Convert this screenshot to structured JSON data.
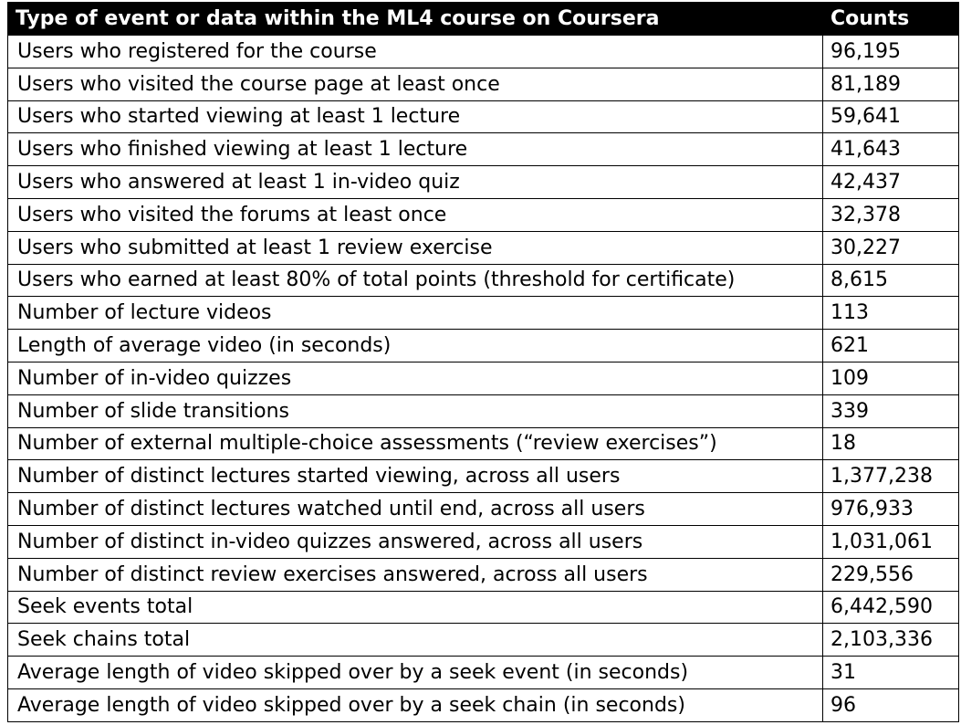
{
  "table": {
    "headers": {
      "event": "Type of event or data within the ML4 course on Coursera",
      "counts": "Counts"
    },
    "rows": [
      {
        "event": "Users who registered for the course",
        "count": "96,195"
      },
      {
        "event": "Users who visited the course page at least once",
        "count": "81,189"
      },
      {
        "event": "Users who started viewing at least 1 lecture",
        "count": "59,641"
      },
      {
        "event": "Users who finished viewing at least 1 lecture",
        "count": "41,643"
      },
      {
        "event": "Users who answered at least 1 in-video quiz",
        "count": "42,437"
      },
      {
        "event": "Users who visited the forums at least once",
        "count": "32,378"
      },
      {
        "event": "Users who submitted at least 1 review exercise",
        "count": "30,227"
      },
      {
        "event": "Users who earned at least 80% of total points (threshold for certificate)",
        "count": "8,615"
      },
      {
        "event": "Number of lecture videos",
        "count": "113"
      },
      {
        "event": "Length of average video (in seconds)",
        "count": "621"
      },
      {
        "event": "Number of in-video quizzes",
        "count": "109"
      },
      {
        "event": "Number of slide transitions",
        "count": "339"
      },
      {
        "event": "Number of external multiple-choice assessments (“review exercises”)",
        "count": "18"
      },
      {
        "event": "Number of distinct lectures started viewing, across all users",
        "count": "1,377,238"
      },
      {
        "event": "Number of distinct lectures watched until end, across all users",
        "count": "976,933"
      },
      {
        "event": "Number of distinct in-video quizzes answered, across all users",
        "count": "1,031,061"
      },
      {
        "event": "Number of distinct review exercises answered, across all users",
        "count": "229,556"
      },
      {
        "event": "Seek events total",
        "count": "6,442,590"
      },
      {
        "event": "Seek chains total",
        "count": "2,103,336"
      },
      {
        "event": "Average length of video skipped over by a seek event (in seconds)",
        "count": "31"
      },
      {
        "event": "Average length of video skipped over by a seek chain (in seconds)",
        "count": "96"
      }
    ]
  }
}
